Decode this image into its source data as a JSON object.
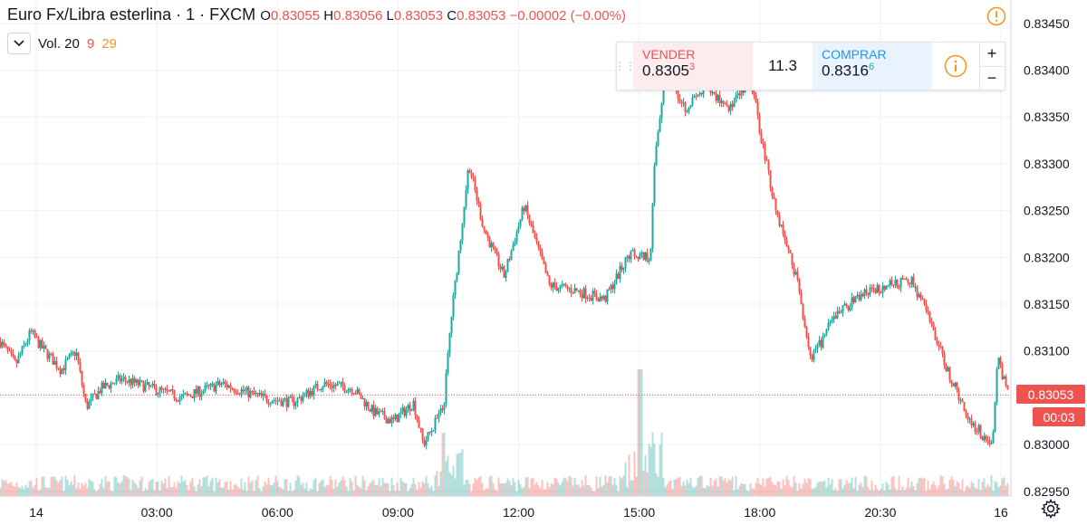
{
  "legend": {
    "symbol": "Euro Fx/Libra esterlina",
    "sep": "·",
    "interval": "1",
    "exchange": "FXCM",
    "o_label": "O",
    "o_value": "0.83055",
    "h_label": "H",
    "h_value": "0.83056",
    "l_label": "L",
    "l_value": "0.83053",
    "c_label": "C",
    "c_value": "0.83053",
    "change": "−0.00002 (−0.00%)"
  },
  "volume_legend": {
    "label": "Vol. 20",
    "value1": "9",
    "value2": "29"
  },
  "trade_panel": {
    "sell_label": "VENDER",
    "sell_price": "0.8305",
    "sell_sup": "3",
    "spread": "11.3",
    "buy_label": "COMPRAR",
    "buy_price": "0.8316",
    "buy_sup": "6",
    "plus": "+",
    "minus": "−"
  },
  "colors": {
    "up": "#26a69a",
    "down": "#ef5350",
    "accent": "#f7931a",
    "grid": "#eef0f3",
    "axis_text": "#131722"
  },
  "icons": {
    "warning": "warning-icon",
    "info": "info-icon",
    "settings": "gear-icon",
    "collapse": "chevron-down-icon"
  },
  "chart_data": {
    "type": "candlestick",
    "y_range": [
      0.82945,
      0.83475
    ],
    "y_ticks": [
      "0.83450",
      "0.83400",
      "0.83350",
      "0.83300",
      "0.83250",
      "0.83200",
      "0.83150",
      "0.83100",
      "0.83050",
      "0.83000",
      "0.82950"
    ],
    "x_ticks": [
      "14",
      "03:00",
      "06:00",
      "09:00",
      "12:00",
      "15:00",
      "18:00",
      "20:30",
      "16"
    ],
    "last_price": "0.83053",
    "countdown": "00:03",
    "price_path": [
      [
        0,
        0.8311
      ],
      [
        0.015,
        0.83085
      ],
      [
        0.03,
        0.8312
      ],
      [
        0.04,
        0.83105
      ],
      [
        0.06,
        0.8308
      ],
      [
        0.075,
        0.831
      ],
      [
        0.085,
        0.8304
      ],
      [
        0.1,
        0.8306
      ],
      [
        0.12,
        0.8307
      ],
      [
        0.15,
        0.8306
      ],
      [
        0.18,
        0.8305
      ],
      [
        0.22,
        0.83065
      ],
      [
        0.26,
        0.8305
      ],
      [
        0.29,
        0.83045
      ],
      [
        0.32,
        0.83065
      ],
      [
        0.35,
        0.8306
      ],
      [
        0.37,
        0.83035
      ],
      [
        0.39,
        0.83025
      ],
      [
        0.41,
        0.83045
      ],
      [
        0.42,
        0.83
      ],
      [
        0.44,
        0.8304
      ],
      [
        0.447,
        0.8313
      ],
      [
        0.465,
        0.833
      ],
      [
        0.48,
        0.8323
      ],
      [
        0.5,
        0.8318
      ],
      [
        0.52,
        0.83255
      ],
      [
        0.545,
        0.8317
      ],
      [
        0.57,
        0.83165
      ],
      [
        0.6,
        0.83155
      ],
      [
        0.625,
        0.83205
      ],
      [
        0.645,
        0.832
      ],
      [
        0.65,
        0.8331
      ],
      [
        0.66,
        0.834
      ],
      [
        0.68,
        0.8336
      ],
      [
        0.7,
        0.8338
      ],
      [
        0.725,
        0.8336
      ],
      [
        0.745,
        0.8339
      ],
      [
        0.755,
        0.8333
      ],
      [
        0.77,
        0.8325
      ],
      [
        0.79,
        0.8318
      ],
      [
        0.805,
        0.8309
      ],
      [
        0.83,
        0.8314
      ],
      [
        0.855,
        0.8316
      ],
      [
        0.88,
        0.8317
      ],
      [
        0.905,
        0.83175
      ],
      [
        0.92,
        0.8314
      ],
      [
        0.94,
        0.8308
      ],
      [
        0.96,
        0.8303
      ],
      [
        0.975,
        0.8301
      ],
      [
        0.985,
        0.83
      ],
      [
        0.99,
        0.83095
      ],
      [
        1.0,
        0.83053
      ]
    ]
  }
}
